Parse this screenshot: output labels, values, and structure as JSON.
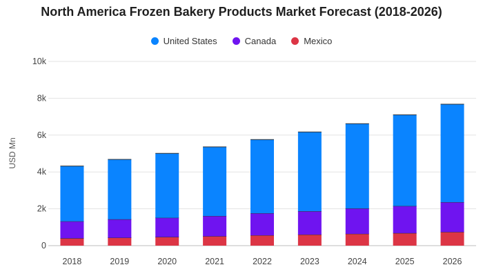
{
  "chart_data": {
    "type": "bar",
    "stacked": true,
    "title": "North America Frozen Bakery Products Market Forecast (2018-2026)",
    "xlabel": "",
    "ylabel": "USD Mn",
    "ylim": [
      0,
      10000
    ],
    "yticks": [
      0,
      2000,
      4000,
      6000,
      8000,
      10000
    ],
    "ytick_labels": [
      "0",
      "2k",
      "4k",
      "6k",
      "8k",
      "10k"
    ],
    "grid": true,
    "legend_position": "top-center",
    "categories": [
      "2018",
      "2019",
      "2020",
      "2021",
      "2022",
      "2023",
      "2024",
      "2025",
      "2026"
    ],
    "series": [
      {
        "name": "Mexico",
        "color": "#dc3545",
        "values": [
          400,
          430,
          470,
          510,
          560,
          600,
          640,
          680,
          740
        ]
      },
      {
        "name": "Canada",
        "color": "#6f14f0",
        "values": [
          920,
          1000,
          1040,
          1100,
          1200,
          1270,
          1380,
          1470,
          1620
        ]
      },
      {
        "name": "United States",
        "color": "#0a84ff",
        "values": [
          3000,
          3250,
          3500,
          3750,
          4000,
          4300,
          4600,
          4950,
          5320
        ]
      }
    ],
    "legend_order": [
      "United States",
      "Canada",
      "Mexico"
    ]
  }
}
